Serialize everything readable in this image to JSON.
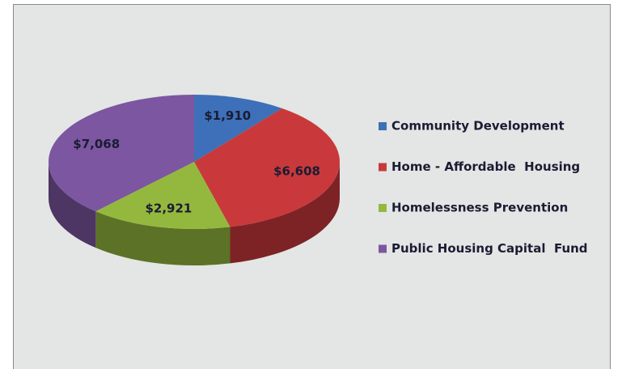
{
  "chart_data": {
    "type": "pie",
    "categories": [
      "Community Development",
      "Home - Affordable  Housing",
      "Homelessness Prevention",
      "Public Housing Capital  Fund"
    ],
    "values": [
      1910,
      6608,
      2921,
      7068
    ],
    "value_labels": [
      "$1,910",
      "$6,608",
      "$2,921",
      "$7,068"
    ],
    "colors": [
      "#3d70b8",
      "#c9393b",
      "#94b83e",
      "#7c56a1"
    ],
    "legend": "right"
  }
}
